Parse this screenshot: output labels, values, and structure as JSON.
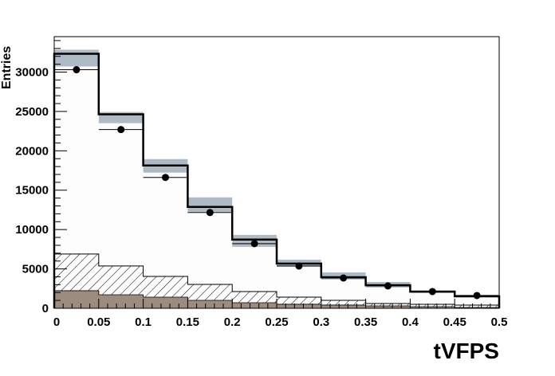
{
  "chart_data": {
    "type": "bar",
    "xlabel": "tVFPS",
    "ylabel": "Entries",
    "xlim": [
      0,
      0.5
    ],
    "ylim": [
      0,
      34500
    ],
    "bin_edges": [
      0,
      0.05,
      0.1,
      0.15,
      0.2,
      0.25,
      0.3,
      0.35,
      0.4,
      0.45,
      0.5
    ],
    "x_ticks": [
      "0",
      "0.05",
      "0.1",
      "0.15",
      "0.2",
      "0.25",
      "0.3",
      "0.35",
      "0.4",
      "0.45",
      "0.5"
    ],
    "y_ticks": [
      "0",
      "5000",
      "10000",
      "15000",
      "20000",
      "25000",
      "30000"
    ],
    "grid": false,
    "series": [
      {
        "kind": "step-total",
        "values": [
          32330,
          24630,
          18140,
          12870,
          8720,
          5680,
          3950,
          2940,
          2130,
          1520
        ]
      },
      {
        "kind": "error-band",
        "low": [
          30710,
          23510,
          17230,
          12260,
          7800,
          5270,
          3650,
          2640,
          1930,
          1420
        ],
        "high": [
          32840,
          24930,
          18950,
          14090,
          9320,
          6180,
          4560,
          3340,
          2230,
          1720
        ]
      },
      {
        "kind": "hatched-stack",
        "values": [
          6890,
          5370,
          4050,
          3040,
          2130,
          1420,
          1010,
          610,
          510,
          400
        ]
      },
      {
        "kind": "filled-stack",
        "values": [
          2230,
          1720,
          1420,
          1010,
          710,
          510,
          410,
          300,
          200,
          100
        ]
      },
      {
        "kind": "data-points",
        "values": [
          30300,
          22700,
          16620,
          12160,
          8210,
          5370,
          3850,
          2840,
          2130,
          1620
        ]
      }
    ],
    "colors": {
      "band": "#aebbc6",
      "filled": "#9c8c80",
      "total_fill": "#fdfdfd",
      "line": "#000000"
    }
  }
}
